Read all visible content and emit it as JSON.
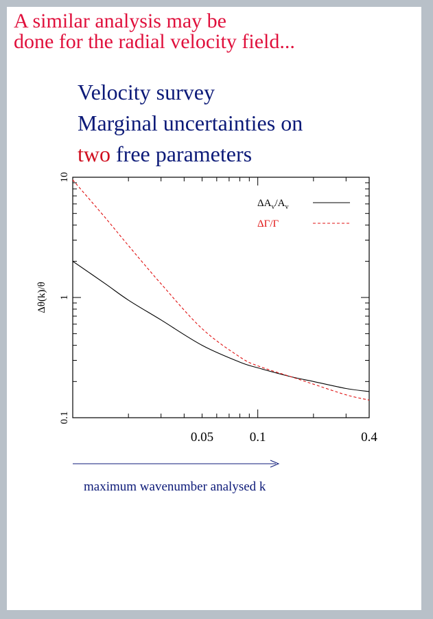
{
  "heading": {
    "line1": "A similar analysis may be",
    "line2": "done for the radial velocity field..."
  },
  "subtitle": {
    "line1": "Velocity survey",
    "line2": "Marginal uncertainties on",
    "line3_highlight": "two",
    "line3_rest": " free parameters"
  },
  "caption": "maximum wavenumber analysed k",
  "colors": {
    "heading": "#e0103c",
    "subtitle": "#0c1a78",
    "highlight": "#d01020",
    "series_A": "#000000",
    "series_Gamma": "#e01010",
    "arrow": "#0c1a78"
  },
  "chart_data": {
    "type": "line",
    "xscale": "log",
    "yscale": "log",
    "xlim": [
      0.01,
      0.4
    ],
    "ylim": [
      0.1,
      10
    ],
    "ylabel": "Δθ(k)/θ",
    "xticks": [
      0.05,
      0.1,
      0.4
    ],
    "xtick_labels": [
      "0.05",
      "0.1",
      "0.4"
    ],
    "yticks": [
      0.1,
      1,
      10
    ],
    "ytick_labels": [
      "0.1",
      "1",
      "10"
    ],
    "legend_position": "top-right",
    "series": [
      {
        "name_main": "ΔA",
        "name_sub": "v",
        "name_mid": "/A",
        "name_sub2": "v",
        "style": "solid",
        "x": [
          0.01,
          0.015,
          0.02,
          0.03,
          0.05,
          0.08,
          0.1,
          0.15,
          0.2,
          0.3,
          0.4
        ],
        "y": [
          2.0,
          1.3,
          0.95,
          0.65,
          0.4,
          0.29,
          0.26,
          0.22,
          0.2,
          0.175,
          0.165
        ]
      },
      {
        "name_main": "ΔΓ/Γ",
        "name_sub": "",
        "name_mid": "",
        "name_sub2": "",
        "style": "dashed",
        "x": [
          0.01,
          0.015,
          0.02,
          0.03,
          0.05,
          0.08,
          0.1,
          0.15,
          0.2,
          0.3,
          0.4
        ],
        "y": [
          9.5,
          4.6,
          2.7,
          1.3,
          0.55,
          0.32,
          0.27,
          0.22,
          0.19,
          0.155,
          0.14
        ]
      }
    ]
  }
}
